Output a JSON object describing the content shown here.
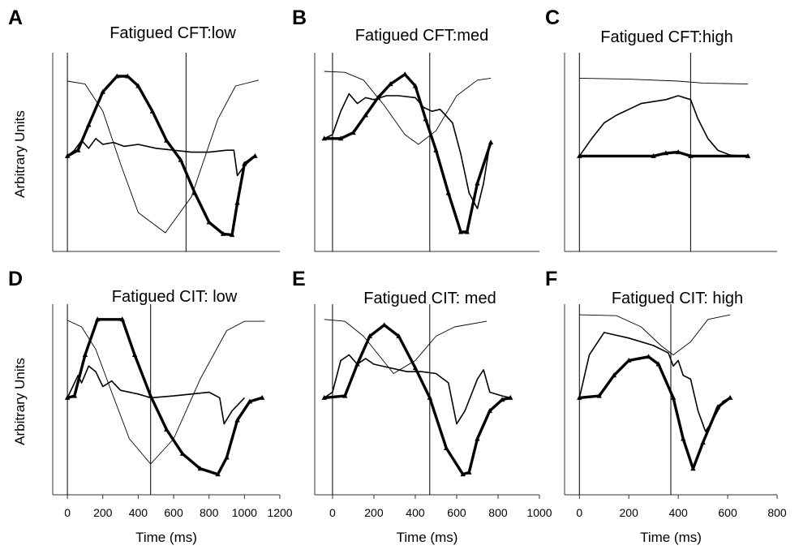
{
  "chart_data": [
    {
      "type": "line",
      "letter": "A",
      "title": "Fatigued CFT:low",
      "ylabel": "Arbitrary Units",
      "xlim": [
        -83,
        1200
      ],
      "ylim": [
        0,
        1
      ],
      "vlines": [
        0,
        670
      ],
      "series": [
        {
          "style": "thin",
          "color": "#000000",
          "x": [
            0,
            100,
            200,
            300,
            400,
            553,
            700,
            850,
            950,
            1080
          ],
          "values": [
            0.875,
            0.86,
            0.72,
            0.45,
            0.2,
            0.096,
            0.28,
            0.68,
            0.85,
            0.88
          ]
        },
        {
          "style": "medium",
          "color": "#000000",
          "x": [
            0,
            40,
            80,
            120,
            160,
            200,
            260,
            320,
            400,
            500,
            600,
            700,
            800,
            900,
            940,
            960,
            1000,
            1060
          ],
          "values": [
            0.49,
            0.52,
            0.57,
            0.53,
            0.58,
            0.55,
            0.56,
            0.54,
            0.55,
            0.53,
            0.52,
            0.51,
            0.51,
            0.52,
            0.52,
            0.39,
            0.44,
            0.49
          ]
        },
        {
          "style": "bold",
          "color": "#000000",
          "x": [
            0,
            60,
            120,
            200,
            280,
            340,
            400,
            480,
            560,
            640,
            720,
            800,
            880,
            930,
            960,
            1000,
            1060
          ],
          "values": [
            0.49,
            0.52,
            0.65,
            0.82,
            0.9,
            0.9,
            0.85,
            0.72,
            0.57,
            0.47,
            0.3,
            0.15,
            0.09,
            0.085,
            0.25,
            0.45,
            0.49
          ]
        }
      ]
    },
    {
      "type": "line",
      "letter": "B",
      "title": "Fatigued CFT:med",
      "xlim": [
        -86,
        1000
      ],
      "ylim": [
        0,
        1
      ],
      "vlines": [
        0,
        470
      ],
      "series": [
        {
          "style": "thin",
          "color": "#000000",
          "x": [
            -40,
            60,
            150,
            250,
            350,
            415,
            500,
            600,
            700,
            765
          ],
          "values": [
            0.925,
            0.92,
            0.88,
            0.75,
            0.6,
            0.55,
            0.62,
            0.8,
            0.88,
            0.89
          ]
        },
        {
          "style": "medium",
          "color": "#000000",
          "x": [
            -40,
            0,
            40,
            80,
            120,
            160,
            200,
            260,
            320,
            400,
            440,
            480,
            520,
            580,
            620,
            660,
            700,
            730,
            760
          ],
          "values": [
            0.58,
            0.6,
            0.72,
            0.81,
            0.76,
            0.79,
            0.78,
            0.8,
            0.8,
            0.79,
            0.74,
            0.72,
            0.73,
            0.66,
            0.5,
            0.3,
            0.22,
            0.35,
            0.55
          ]
        },
        {
          "style": "bold",
          "color": "#000000",
          "x": [
            -40,
            40,
            100,
            160,
            220,
            280,
            350,
            400,
            450,
            500,
            560,
            620,
            650,
            700,
            765
          ],
          "values": [
            0.58,
            0.58,
            0.61,
            0.7,
            0.79,
            0.86,
            0.91,
            0.85,
            0.68,
            0.52,
            0.3,
            0.1,
            0.1,
            0.35,
            0.56
          ]
        }
      ]
    },
    {
      "type": "line",
      "letter": "C",
      "title": "Fatigued CFT:high",
      "xlim": [
        -60,
        800
      ],
      "ylim": [
        0,
        1
      ],
      "vlines": [
        0,
        450
      ],
      "series": [
        {
          "style": "thin",
          "color": "#000000",
          "x": [
            0,
            200,
            400,
            500,
            682
          ],
          "values": [
            0.89,
            0.885,
            0.875,
            0.865,
            0.86
          ]
        },
        {
          "style": "medium",
          "color": "#000000",
          "x": [
            0,
            50,
            100,
            150,
            200,
            250,
            300,
            350,
            400,
            450,
            480,
            520,
            560,
            610,
            682
          ],
          "values": [
            0.49,
            0.58,
            0.66,
            0.7,
            0.73,
            0.76,
            0.77,
            0.78,
            0.8,
            0.78,
            0.68,
            0.58,
            0.52,
            0.495,
            0.49
          ]
        },
        {
          "style": "bold",
          "color": "#000000",
          "x": [
            0,
            300,
            350,
            400,
            450,
            682
          ],
          "values": [
            0.49,
            0.49,
            0.505,
            0.51,
            0.49,
            0.49
          ]
        }
      ]
    },
    {
      "type": "line",
      "letter": "D",
      "title": "Fatigued CIT: low",
      "ylabel": "Arbitrary Units",
      "xlabel": "Time (ms)",
      "xlim": [
        -83,
        1200
      ],
      "ylim": [
        0,
        1
      ],
      "xticks": [
        0,
        200,
        400,
        600,
        800,
        1000,
        1200
      ],
      "vlines": [
        0,
        470
      ],
      "series": [
        {
          "style": "thin",
          "color": "#000000",
          "x": [
            0,
            80,
            160,
            250,
            350,
            470,
            600,
            750,
            900,
            1000,
            1115
          ],
          "values": [
            0.935,
            0.9,
            0.78,
            0.55,
            0.3,
            0.165,
            0.3,
            0.62,
            0.88,
            0.93,
            0.93
          ]
        },
        {
          "style": "medium",
          "color": "#000000",
          "x": [
            0,
            30,
            60,
            80,
            120,
            160,
            200,
            250,
            300,
            400,
            470,
            600,
            700,
            800,
            860,
            885,
            930,
            1000
          ],
          "values": [
            0.52,
            0.58,
            0.64,
            0.6,
            0.69,
            0.66,
            0.58,
            0.61,
            0.56,
            0.54,
            0.52,
            0.53,
            0.54,
            0.55,
            0.52,
            0.38,
            0.45,
            0.52
          ]
        },
        {
          "style": "bold",
          "color": "#000000",
          "x": [
            0,
            40,
            100,
            170,
            310,
            380,
            470,
            560,
            650,
            750,
            850,
            900,
            960,
            1030,
            1100
          ],
          "values": [
            0.52,
            0.53,
            0.75,
            0.94,
            0.94,
            0.75,
            0.53,
            0.35,
            0.22,
            0.14,
            0.11,
            0.2,
            0.4,
            0.5,
            0.52
          ]
        }
      ]
    },
    {
      "type": "line",
      "letter": "E",
      "title": "Fatigued CIT: med",
      "xlabel": "Time (ms)",
      "xlim": [
        -86,
        1000
      ],
      "ylim": [
        0,
        1
      ],
      "xticks": [
        0,
        200,
        400,
        600,
        800,
        1000
      ],
      "vlines": [
        0,
        470
      ],
      "series": [
        {
          "style": "thin",
          "color": "#000000",
          "x": [
            -40,
            60,
            150,
            295,
            400,
            500,
            590,
            745
          ],
          "values": [
            0.94,
            0.93,
            0.85,
            0.65,
            0.72,
            0.85,
            0.9,
            0.93
          ]
        },
        {
          "style": "medium",
          "color": "#000000",
          "x": [
            -40,
            0,
            40,
            80,
            120,
            160,
            200,
            280,
            360,
            430,
            500,
            560,
            600,
            640,
            700,
            730,
            760,
            820,
            860
          ],
          "values": [
            0.52,
            0.55,
            0.72,
            0.75,
            0.7,
            0.73,
            0.7,
            0.68,
            0.66,
            0.66,
            0.65,
            0.6,
            0.38,
            0.45,
            0.62,
            0.67,
            0.55,
            0.53,
            0.52
          ]
        },
        {
          "style": "bold",
          "color": "#000000",
          "x": [
            -40,
            60,
            120,
            180,
            250,
            320,
            400,
            470,
            550,
            630,
            660,
            700,
            760,
            820,
            860
          ],
          "values": [
            0.52,
            0.53,
            0.7,
            0.85,
            0.91,
            0.85,
            0.68,
            0.52,
            0.25,
            0.11,
            0.12,
            0.3,
            0.45,
            0.51,
            0.52
          ]
        }
      ]
    },
    {
      "type": "line",
      "letter": "F",
      "title": "Fatigued CIT: high",
      "xlabel": "Time (ms)",
      "xlim": [
        -60,
        800
      ],
      "ylim": [
        0,
        1
      ],
      "xticks": [
        0,
        200,
        400,
        600,
        800
      ],
      "vlines": [
        0,
        370
      ],
      "series": [
        {
          "style": "thin",
          "color": "#000000",
          "x": [
            0,
            150,
            250,
            330,
            380,
            450,
            520,
            610
          ],
          "values": [
            0.965,
            0.96,
            0.9,
            0.8,
            0.75,
            0.82,
            0.94,
            0.965
          ]
        },
        {
          "style": "medium",
          "color": "#000000",
          "x": [
            0,
            40,
            100,
            200,
            300,
            360,
            380,
            400,
            420,
            450,
            480,
            510,
            540,
            580,
            610
          ],
          "values": [
            0.52,
            0.75,
            0.87,
            0.84,
            0.8,
            0.76,
            0.69,
            0.72,
            0.64,
            0.62,
            0.45,
            0.34,
            0.4,
            0.5,
            0.52
          ]
        },
        {
          "style": "bold",
          "color": "#000000",
          "x": [
            0,
            80,
            140,
            200,
            280,
            320,
            380,
            420,
            460,
            500,
            560,
            610
          ],
          "values": [
            0.52,
            0.53,
            0.64,
            0.72,
            0.74,
            0.7,
            0.52,
            0.3,
            0.14,
            0.28,
            0.47,
            0.52
          ]
        }
      ]
    }
  ]
}
